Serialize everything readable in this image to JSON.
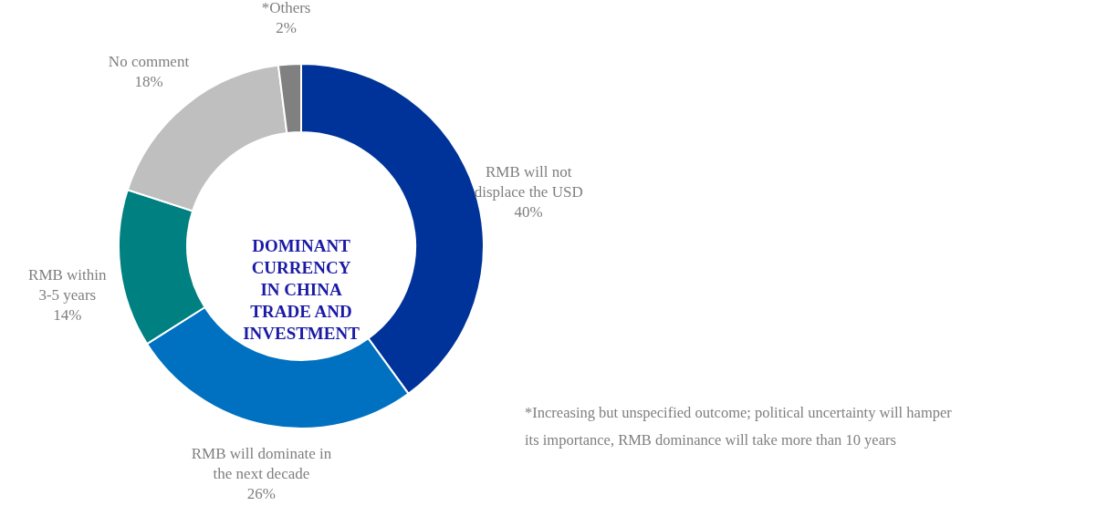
{
  "chart_data": {
    "type": "donut",
    "title": "DOMINANT CURRENCY IN CHINA TRADE AND INVESTMENT",
    "categories": [
      "RMB will not\ndisplace the USD",
      "RMB will dominate in\nthe next decade",
      "RMB within\n3-5 years",
      "No comment",
      "*Others"
    ],
    "values": [
      40,
      26,
      14,
      18,
      2
    ],
    "colors": [
      "#003399",
      "#0070c0",
      "#008080",
      "#bfbfbf",
      "#808080"
    ],
    "value_labels": [
      "40%",
      "26%",
      "14%",
      "18%",
      "2%"
    ],
    "annotations": [
      "*Increasing but unspecified outcome; political uncertainty will hamper its importance, RMB dominance will take more than 10 years"
    ]
  }
}
